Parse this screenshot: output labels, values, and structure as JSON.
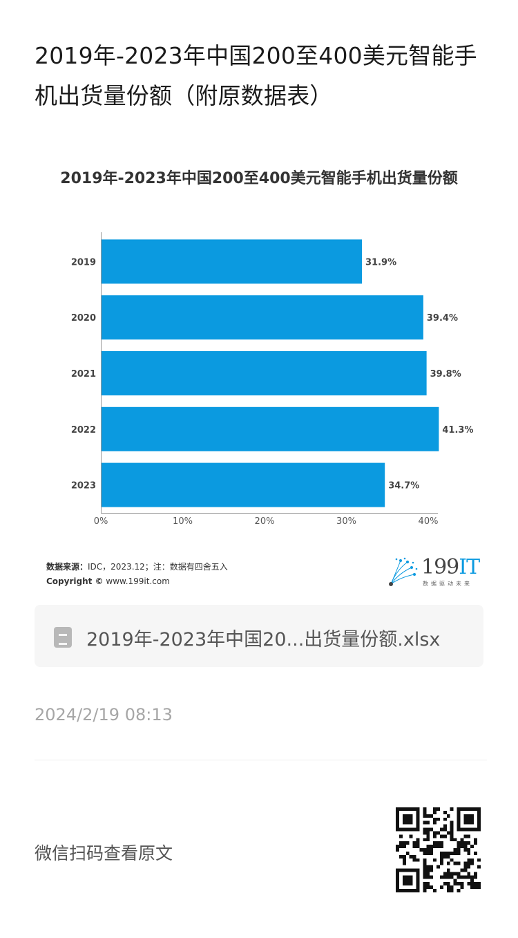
{
  "article": {
    "title": "2019年-2023年中国200至400美元智能手机出货量份额（附原数据表）"
  },
  "chart_data": {
    "type": "bar",
    "orientation": "horizontal",
    "title": "2019年-2023年中国200至400美元智能手机出货量份额",
    "categories": [
      "2019",
      "2020",
      "2021",
      "2022",
      "2023"
    ],
    "values": [
      31.9,
      39.4,
      39.8,
      41.3,
      34.7
    ],
    "value_labels": [
      "31.9%",
      "39.4%",
      "39.8%",
      "41.3%",
      "34.7%"
    ],
    "xlim": [
      0,
      40
    ],
    "x_ticks": [
      "0%",
      "10%",
      "20%",
      "30%",
      "40%"
    ],
    "grid": false,
    "bar_color": "#0b9ae0"
  },
  "source": {
    "label": "数据来源：",
    "text": "IDC，2023.12；注：数据有四舍五入",
    "copyright_label": "Copyright ©",
    "copyright_url": "www.199it.com"
  },
  "brand": {
    "name_num": "199",
    "name_it": "IT",
    "tagline": "数据驱动未来"
  },
  "attachment": {
    "file_name": "2019年-2023年中国20...出货量份额.xlsx",
    "icon": "spreadsheet-file-icon"
  },
  "meta": {
    "timestamp": "2024/2/19 08:13",
    "scan_prompt": "微信扫码查看原文"
  },
  "colors": {
    "accent": "#0b9ae0",
    "muted_text": "#a6a6a6"
  }
}
